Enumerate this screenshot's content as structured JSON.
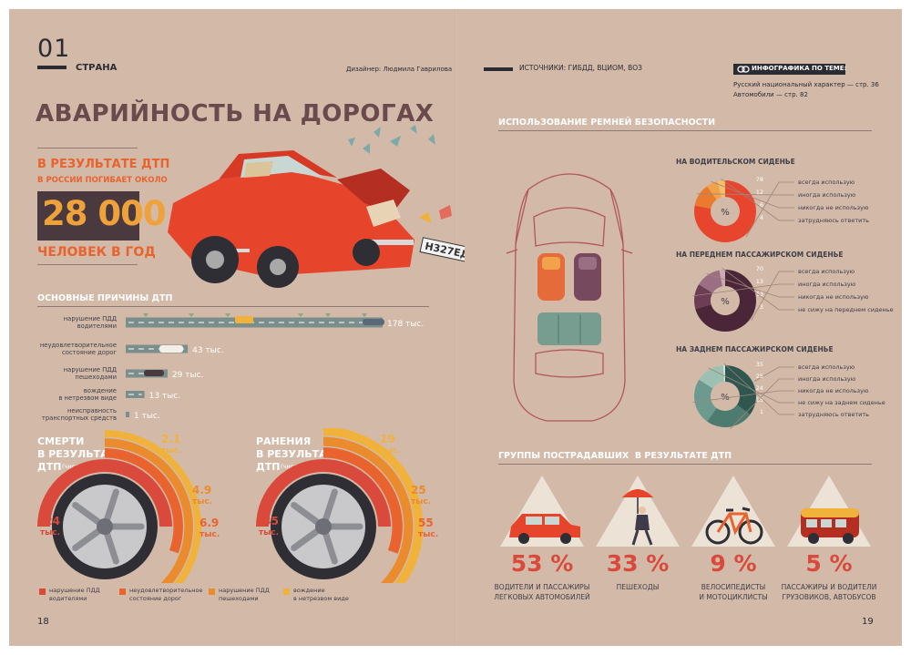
{
  "header": {
    "section_number": "01",
    "section_label": "СТРАНА",
    "designer": "Дизайнер: Людмила Гаврилова",
    "sources": "ИСТОЧНИКИ: ГИБДД, ВЦИОМ, ВОЗ",
    "related_title": "ИНФОГРАФИКА ПО ТЕМЕ:",
    "related_links": [
      "Русский национальный характер — стр. 36",
      "Автомобили — стр. 82"
    ]
  },
  "title": "АВАРИЙНОСТЬ НА ДОРОГАХ",
  "hero": {
    "line1": "В РЕЗУЛЬТАТЕ ДТП",
    "line2": "В РОССИИ ПОГИБАЕТ ОКОЛО",
    "number": "28 000",
    "line3": "ЧЕЛОВЕК В ГОД",
    "plate": "Н327ЕД"
  },
  "causes": {
    "title": "ОСНОВНЫЕ ПРИЧИНЫ ДТП",
    "items": [
      {
        "label": [
          "нарушение ПДД",
          "водителями"
        ],
        "value": 178,
        "value_label": "178 тыс."
      },
      {
        "label": [
          "неудовлетворительное",
          "состояние дорог"
        ],
        "value": 43,
        "value_label": "43 тыс."
      },
      {
        "label": [
          "нарушение ПДД",
          "пешеходами"
        ],
        "value": 29,
        "value_label": "29 тыс."
      },
      {
        "label": [
          "вождение",
          "в нетрезвом виде"
        ],
        "value": 13,
        "value_label": "13 тыс."
      },
      {
        "label": [
          "неисправность",
          "транспортных средств"
        ],
        "value": 1,
        "value_label": "1 тыс."
      }
    ]
  },
  "deaths": {
    "title": [
      "СМЕРТИ",
      "В РЕЗУЛЬТАТЕ",
      "ДТП"
    ],
    "note": "(число случаев)",
    "values": [
      {
        "value": "24",
        "unit": "тыс."
      },
      {
        "value": "6.9",
        "unit": "тыс."
      },
      {
        "value": "4.9",
        "unit": "тыс."
      },
      {
        "value": "2.1",
        "unit": "тыс."
      }
    ]
  },
  "injuries": {
    "title": [
      "РАНЕНИЯ",
      "В РЕЗУЛЬТАТЕ",
      "ДТП"
    ],
    "note": "(число случаев)",
    "values": [
      {
        "value": "235",
        "unit": "тыс."
      },
      {
        "value": "55",
        "unit": "тыс."
      },
      {
        "value": "25",
        "unit": "тыс."
      },
      {
        "value": "19",
        "unit": "тыс."
      }
    ]
  },
  "legend": [
    {
      "label": [
        "нарушение ПДД",
        "водителями"
      ],
      "color": "#d94a3c"
    },
    {
      "label": [
        "неудовлетворительное",
        "состояние дорог"
      ],
      "color": "#e8632e"
    },
    {
      "label": [
        "нарушение ПДД",
        "пешеходами"
      ],
      "color": "#ea8b2e"
    },
    {
      "label": [
        "вождение",
        "в нетрезвом виде"
      ],
      "color": "#f0b23a"
    }
  ],
  "seatbelts": {
    "title": "ИСПОЛЬЗОВАНИЕ РЕМНЕЙ БЕЗОПАСНОСТИ",
    "charts": [
      {
        "title": "НА ВОДИТЕЛЬСКОМ СИДЕНЬЕ",
        "center": "%",
        "slices": [
          {
            "label": "всегда использую",
            "value": 78,
            "color": "#e8452f"
          },
          {
            "label": "иногда использую",
            "value": 12,
            "color": "#ea7a2e"
          },
          {
            "label": "никогда не использую",
            "value": 6,
            "color": "#f2a24a"
          },
          {
            "label": "затрудняюсь ответить",
            "value": 4,
            "color": "#f5c06a"
          }
        ]
      },
      {
        "title": "НА ПЕРЕДНЕМ ПАССАЖИРСКОМ СИДЕНЬЕ",
        "center": "%",
        "slices": [
          {
            "label": "всегда использую",
            "value": 70,
            "color": "#4a2638"
          },
          {
            "label": "иногда использую",
            "value": 13,
            "color": "#6c3d55"
          },
          {
            "label": "никогда не использую",
            "value": 13,
            "color": "#9a6f83"
          },
          {
            "label": "не сижу на переднем сиденье",
            "value": 3,
            "color": "#c9a9b4"
          }
        ]
      },
      {
        "title": "НА ЗАДНЕМ ПАССАЖИРСКОМ СИДЕНЬЕ",
        "center": "%",
        "slices": [
          {
            "label": "всегда использую",
            "value": 35,
            "color": "#2f5750"
          },
          {
            "label": "иногда использую",
            "value": 25,
            "color": "#4d7b70"
          },
          {
            "label": "никогда не использую",
            "value": 24,
            "color": "#6d9a8e"
          },
          {
            "label": "не сижу на заднем сиденье",
            "value": 15,
            "color": "#9cc1b3"
          },
          {
            "label": "затрудняюсь ответить",
            "value": 1,
            "color": "#cfe3da"
          }
        ]
      }
    ]
  },
  "victims": {
    "title": "ГРУППЫ ПОСТРАДАВШИХ  В РЕЗУЛЬТАТЕ ДТП",
    "groups": [
      {
        "percent": "53 %",
        "label": [
          "ВОДИТЕЛИ И ПАССАЖИРЫ",
          "ЛЕГКОВЫХ АВТОМОБИЛЕЙ"
        ]
      },
      {
        "percent": "33 %",
        "label": [
          "ПЕШЕХОДЫ"
        ]
      },
      {
        "percent": "9 %",
        "label": [
          "ВЕЛОСИПЕДИСТЫ",
          "И МОТОЦИКЛИСТЫ"
        ]
      },
      {
        "percent": "5 %",
        "label": [
          "ПАССАЖИРЫ И ВОДИТЕЛИ",
          "ГРУЗОВИКОВ, АВТОБУСОВ"
        ]
      }
    ]
  },
  "page_numbers": {
    "left": "18",
    "right": "19"
  },
  "chart_data": [
    {
      "type": "bar",
      "title": "ОСНОВНЫЕ ПРИЧИНЫ ДТП",
      "categories": [
        "нарушение ПДД водителями",
        "неудовлетворительное состояние дорог",
        "нарушение ПДД пешеходами",
        "вождение в нетрезвом виде",
        "неисправность транспортных средств"
      ],
      "values": [
        178,
        43,
        29,
        13,
        1
      ]
    },
    {
      "type": "bar",
      "title": "СМЕРТИ В РЕЗУЛЬТАТЕ ДТП",
      "categories": [
        "нарушение ПДД водителями",
        "неудовлетворительное состояние дорог",
        "нарушение ПДД пешеходами",
        "вождение в нетрезвом виде"
      ],
      "values": [
        24,
        6.9,
        4.9,
        2.1
      ]
    },
    {
      "type": "bar",
      "title": "РАНЕНИЯ В РЕЗУЛЬТАТЕ ДТП",
      "categories": [
        "нарушение ПДД водителями",
        "неудовлетворительное состояние дорог",
        "нарушение ПДД пешеходами",
        "вождение в нетрезвом виде"
      ],
      "values": [
        235,
        55,
        25,
        19
      ]
    },
    {
      "type": "pie",
      "title": "НА ВОДИТЕЛЬСКОМ СИДЕНЬЕ",
      "categories": [
        "всегда использую",
        "иногда использую",
        "никогда не использую",
        "затрудняюсь ответить"
      ],
      "values": [
        78,
        12,
        6,
        4
      ]
    },
    {
      "type": "pie",
      "title": "НА ПЕРЕДНЕМ ПАССАЖИРСКОМ СИДЕНЬЕ",
      "categories": [
        "всегда использую",
        "иногда использую",
        "никогда не использую",
        "не сижу на переднем сиденье"
      ],
      "values": [
        70,
        13,
        13,
        3
      ]
    },
    {
      "type": "pie",
      "title": "НА ЗАДНЕМ ПАССАЖИРСКОМ СИДЕНЬЕ",
      "categories": [
        "всегда использую",
        "иногда использую",
        "никогда не использую",
        "не сижу на заднем сиденье",
        "затрудняюсь ответить"
      ],
      "values": [
        35,
        25,
        24,
        15,
        1
      ]
    },
    {
      "type": "bar",
      "title": "ГРУППЫ ПОСТРАДАВШИХ  В РЕЗУЛЬТАТЕ ДТП",
      "categories": [
        "ВОДИТЕЛИ И ПАССАЖИРЫ ЛЕГКОВЫХ АВТОМОБИЛЕЙ",
        "ПЕШЕХОДЫ",
        "ВЕЛОСИПЕДИСТЫ И МОТОЦИКЛИСТЫ",
        "ПАССАЖИРЫ И ВОДИТЕЛИ ГРУЗОВИКОВ, АВТОБУСОВ"
      ],
      "values": [
        53,
        33,
        9,
        5
      ]
    }
  ]
}
